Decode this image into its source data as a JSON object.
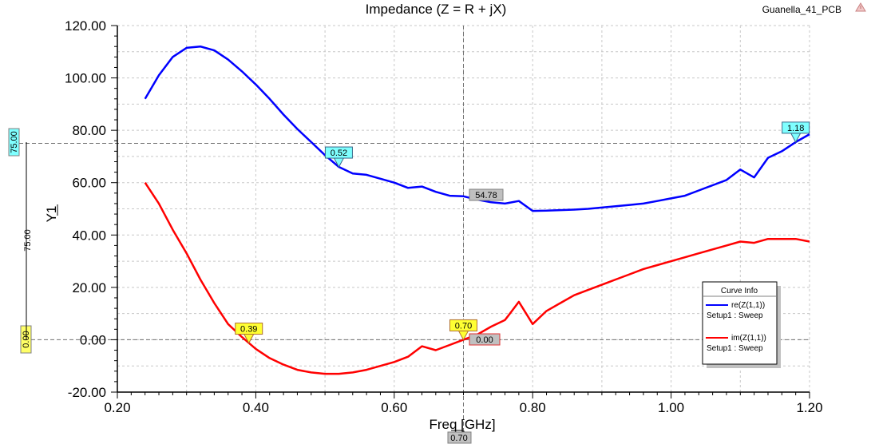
{
  "chart_data": {
    "type": "line",
    "title": "Impedance (Z = R + jX)",
    "project": "Guanella_41_PCB",
    "xlabel": "Freq [GHz]",
    "ylabel": "Y1",
    "xlim": [
      0.2,
      1.2
    ],
    "ylim": [
      -20,
      120
    ],
    "x_ticks": [
      "0.20",
      "0.40",
      "0.60",
      "0.80",
      "1.00",
      "1.20"
    ],
    "y_ticks": [
      "-20.00",
      "0.00",
      "20.00",
      "40.00",
      "60.00",
      "80.00",
      "100.00",
      "120.00"
    ],
    "grid": true,
    "series": [
      {
        "name": "re(Z(1,1))",
        "sub": "Setup1 : Sweep",
        "color": "#0000ff",
        "x": [
          0.24,
          0.26,
          0.28,
          0.3,
          0.32,
          0.34,
          0.36,
          0.38,
          0.4,
          0.42,
          0.44,
          0.46,
          0.48,
          0.5,
          0.52,
          0.54,
          0.56,
          0.58,
          0.6,
          0.62,
          0.64,
          0.66,
          0.68,
          0.7,
          0.72,
          0.74,
          0.76,
          0.78,
          0.8,
          0.82,
          0.84,
          0.86,
          0.88,
          0.9,
          0.92,
          0.94,
          0.96,
          0.98,
          1.0,
          1.02,
          1.04,
          1.06,
          1.08,
          1.1,
          1.12,
          1.14,
          1.16,
          1.18,
          1.2
        ],
        "y": [
          92,
          101,
          108,
          111.5,
          112,
          110.5,
          107,
          102.5,
          97.5,
          92,
          86,
          80.5,
          75.5,
          70.5,
          66,
          63.5,
          63,
          61.5,
          60,
          58,
          58.5,
          56.5,
          55,
          54.8,
          53.5,
          52.5,
          52,
          53,
          49.2,
          49.3,
          49.5,
          49.7,
          50,
          50.5,
          51,
          51.5,
          52,
          53,
          54,
          55,
          57,
          59,
          61,
          65,
          62,
          69.5,
          72,
          75.5,
          78.5
        ]
      },
      {
        "name": "im(Z(1,1))",
        "sub": "Setup1 : Sweep",
        "color": "#ff0000",
        "x": [
          0.24,
          0.26,
          0.28,
          0.3,
          0.32,
          0.34,
          0.36,
          0.38,
          0.4,
          0.42,
          0.44,
          0.46,
          0.48,
          0.5,
          0.52,
          0.54,
          0.56,
          0.58,
          0.6,
          0.62,
          0.64,
          0.66,
          0.68,
          0.7,
          0.72,
          0.74,
          0.76,
          0.78,
          0.8,
          0.82,
          0.84,
          0.86,
          0.88,
          0.9,
          0.92,
          0.94,
          0.96,
          0.98,
          1.0,
          1.02,
          1.04,
          1.06,
          1.08,
          1.1,
          1.12,
          1.14,
          1.16,
          1.18,
          1.2
        ],
        "y": [
          60,
          52,
          42,
          33,
          23,
          14,
          6,
          1,
          -3.5,
          -7,
          -9.5,
          -11.5,
          -12.5,
          -13,
          -13,
          -12.5,
          -11.5,
          -10,
          -8.5,
          -6.5,
          -2.5,
          -4,
          -2,
          0,
          2,
          5,
          7.5,
          14.5,
          6,
          11,
          14,
          17,
          19,
          21,
          23,
          25,
          27,
          28.5,
          30,
          31.5,
          33,
          34.5,
          36,
          37.5,
          37,
          38.5,
          38.5,
          38.5,
          37.5
        ]
      }
    ],
    "markers": [
      {
        "series": 0,
        "x": 0.52,
        "label": "0.52"
      },
      {
        "series": 0,
        "x": 1.18,
        "label": "1.18"
      },
      {
        "series": 1,
        "x": 0.39,
        "label": "0.39"
      },
      {
        "series": 1,
        "x": 0.7,
        "label": "0.70"
      }
    ],
    "readouts": {
      "y_left_upper": "75.00",
      "y_left_lower": "0.00",
      "y_delta": "75.00",
      "x_cursor": "0.70",
      "re_value": "54.78",
      "im_value": "0.00"
    },
    "legend": {
      "title": "Curve Info",
      "placement": "bottom-right"
    }
  }
}
